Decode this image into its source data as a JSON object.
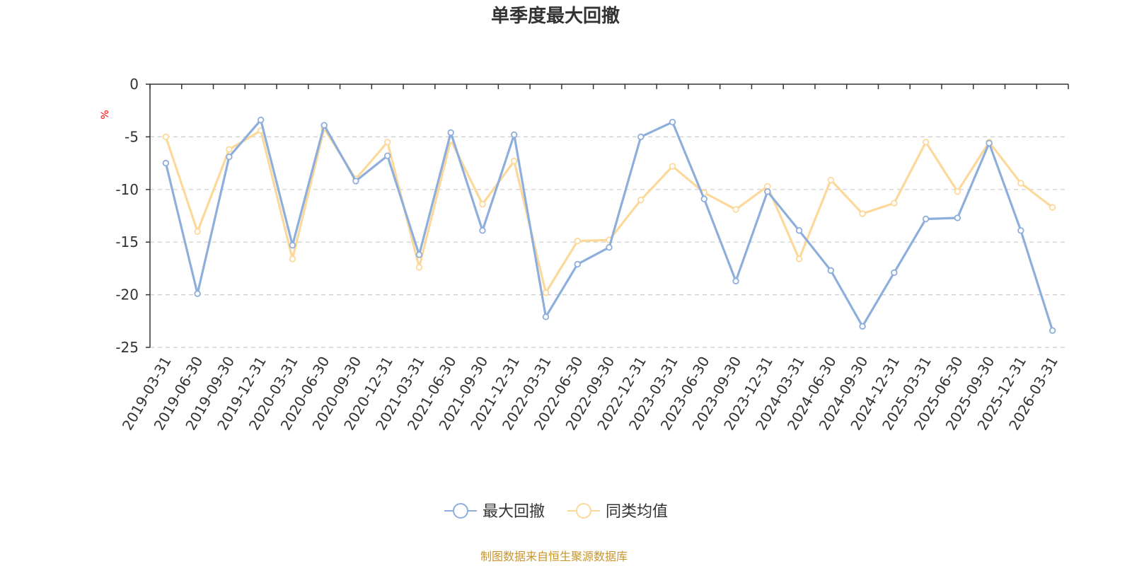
{
  "chart_data": {
    "type": "line",
    "title": "单季度最大回撤",
    "ylabel": "%",
    "xlabel": "",
    "ylim": [
      -25,
      0
    ],
    "yticks": [
      0,
      -5,
      -10,
      -15,
      -20,
      -25
    ],
    "grid": true,
    "legend_position": "bottom-center",
    "categories": [
      "2019-03-31",
      "2019-06-30",
      "2019-09-30",
      "2019-12-31",
      "2020-03-31",
      "2020-06-30",
      "2020-09-30",
      "2020-12-31",
      "2021-03-31",
      "2021-06-30",
      "2021-09-30",
      "2021-12-31",
      "2022-03-31",
      "2022-06-30",
      "2022-09-30",
      "2022-12-31",
      "2023-03-31",
      "2023-06-30",
      "2023-09-30",
      "2023-12-31",
      "2024-03-31",
      "2024-06-30",
      "2024-09-30",
      "2024-12-31",
      "2025-03-31",
      "2025-06-30",
      "2025-09-30",
      "2025-12-31",
      "2026-03-31"
    ],
    "series": [
      {
        "name": "最大回撤",
        "color": "#8eaedb",
        "values": [
          -7.5,
          -19.9,
          -6.9,
          -3.4,
          -15.3,
          -3.9,
          -9.2,
          -6.8,
          -16.2,
          -4.6,
          -13.9,
          -4.8,
          -22.1,
          -17.1,
          -15.5,
          -5.0,
          -3.6,
          -10.9,
          -18.7,
          -10.2,
          -13.9,
          -17.7,
          -23.0,
          -17.9,
          -12.8,
          -12.7,
          -5.6,
          -13.9,
          -23.4
        ]
      },
      {
        "name": "同类均值",
        "color": "#fcd99a",
        "values": [
          -5.0,
          -14.0,
          -6.2,
          -4.4,
          -16.6,
          -4.2,
          -9.0,
          -5.5,
          -17.4,
          -5.3,
          -11.4,
          -7.3,
          -19.8,
          -14.9,
          -14.8,
          -11.0,
          -7.8,
          -10.3,
          -11.9,
          -9.7,
          -16.6,
          -9.1,
          -12.3,
          -11.3,
          -5.5,
          -10.2,
          -5.5,
          -9.4,
          -11.7
        ]
      }
    ]
  },
  "source_note": "制图数据来自恒生聚源数据库"
}
